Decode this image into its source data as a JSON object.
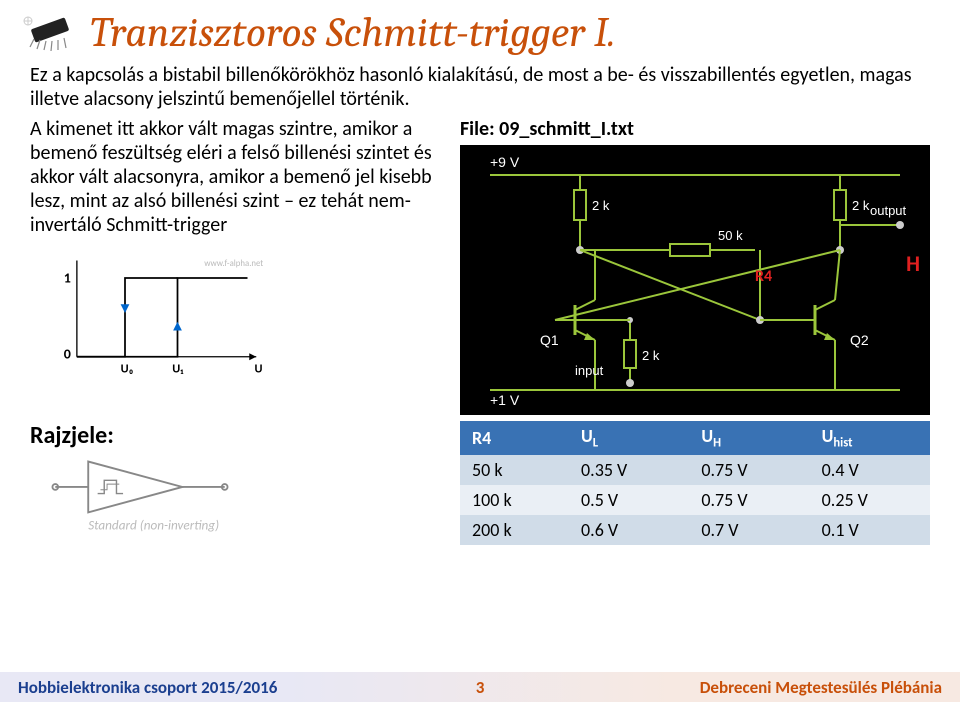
{
  "header": {
    "title": "Tranzisztoros Schmitt-trigger I."
  },
  "intro": "Ez a kapcsolás a bistabil billenőkörökhöz hasonló kialakítású, de most a be- és visszabillentés egyetlen, magas illetve alacsony jelszintű bemenőjellel történik.",
  "desc": "A kimenet itt akkor vált magas szintre, amikor a bemenő feszültség eléri a felső billenési szintet és akkor vált alacsonyra, amikor a bemenő jel kisebb lesz, mint az alsó billenési szint – ez tehát nem-invertáló Schmitt-trigger",
  "hysteresis": {
    "y_high": "1",
    "y_low": "0",
    "x_left": "U₀",
    "x_right": "U₁",
    "x_axis": "U",
    "watermark": "www.f-alpha.net",
    "background_color": "#ffffff",
    "line_color": "#000000",
    "arrow_color": "#0066cc"
  },
  "file_label": "File: 09_schmitt_I.txt",
  "circuit": {
    "background": "#000000",
    "wire_color": "#9bc63b",
    "text_color": "#ffffff",
    "dot_color": "#cccccc",
    "top_rail": "+9 V",
    "bottom_rail": "+1 V",
    "r_top_left": "2 k",
    "r_top_right": "2 k",
    "r_mid": "50 k",
    "r_bottom": "2 k",
    "q1": "Q1",
    "q2": "Q2",
    "input": "input",
    "output": "output",
    "annot_H": "H",
    "annot_R4": "R4"
  },
  "symbol": {
    "label": "Rajzjele:",
    "standard": "Standard (non-inverting)"
  },
  "table": {
    "headers": [
      "R4",
      "Uₗ",
      "Uₕ",
      "Uₕᵢₛₜ"
    ],
    "header_plain": [
      "R4",
      "UL",
      "UH",
      "Uhist"
    ],
    "rows": [
      [
        "50 k",
        "0.35 V",
        "0.75 V",
        "0.4 V"
      ],
      [
        "100 k",
        "0.5 V",
        "0.75 V",
        "0.25 V"
      ],
      [
        "200 k",
        "0.6 V",
        "0.7 V",
        "0.1 V"
      ]
    ],
    "header_bg": "#3972b4",
    "header_fg": "#ffffff",
    "row_odd_bg": "#d0dce8",
    "row_even_bg": "#eaeff5"
  },
  "footer": {
    "left": "Hobbielektronika csoport 2015/2016",
    "page": "3",
    "right": "Debreceni Megtestesülés Plébánia"
  }
}
